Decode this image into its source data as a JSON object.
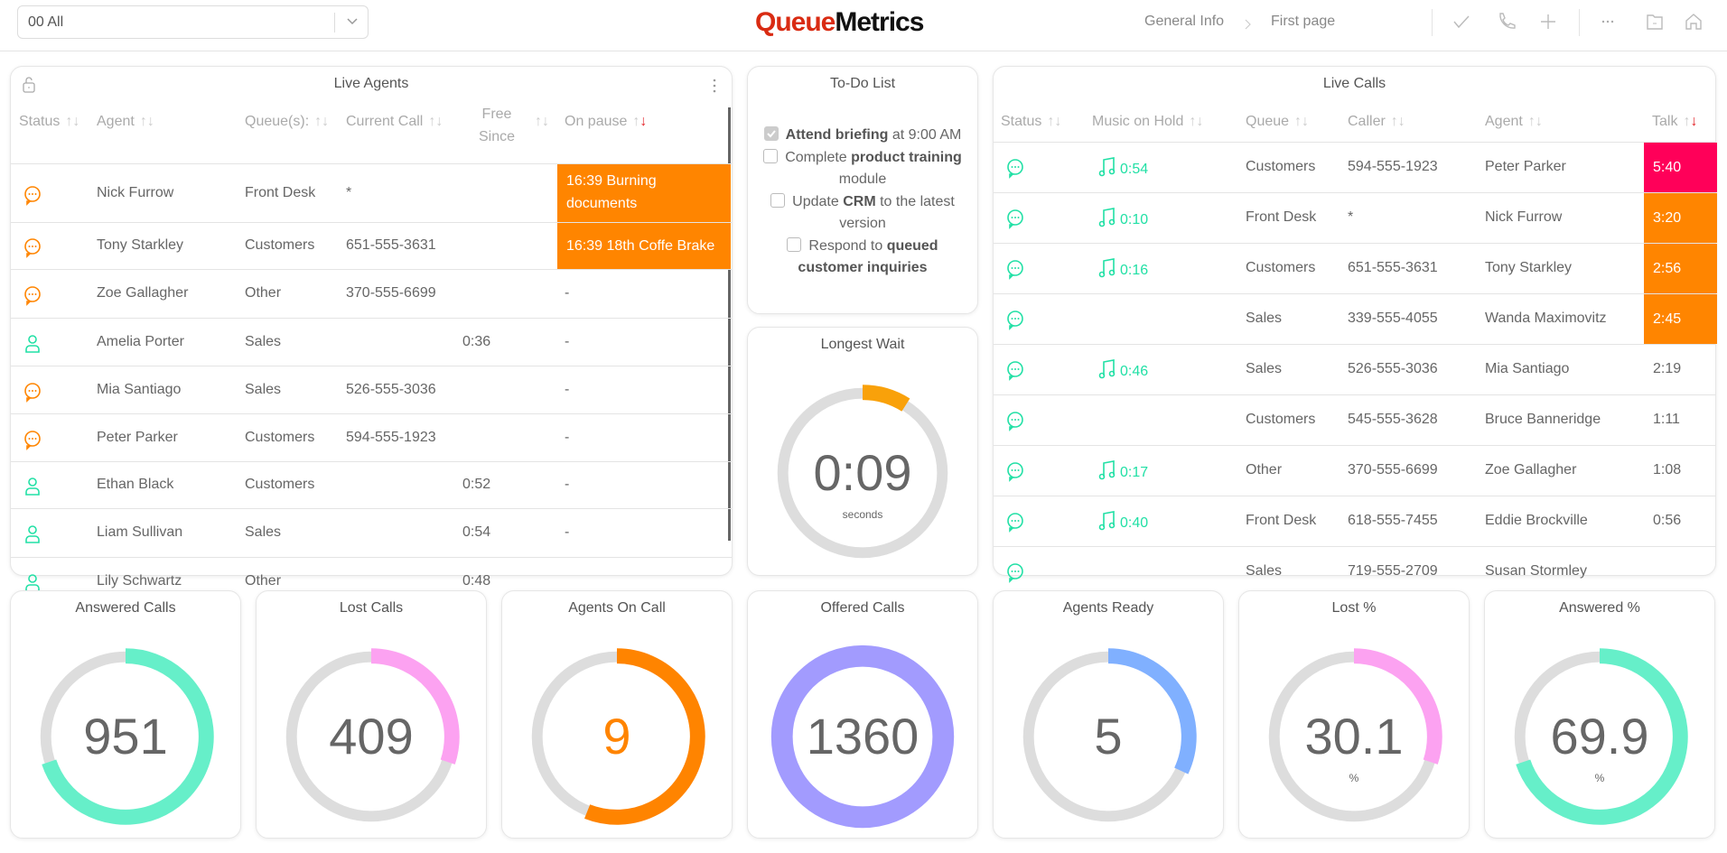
{
  "header": {
    "queue_select": "00 All",
    "logo_part1": "Queue",
    "logo_part2": "Metrics",
    "breadcrumb": [
      "General Info",
      "First page"
    ],
    "icons": [
      "check-icon",
      "phone-icon",
      "plus-icon",
      "more-icon",
      "folder-icon",
      "home-icon"
    ]
  },
  "colors": {
    "pause": "#ff8500",
    "talk_long": "#ff0059",
    "talk_warn": "#ff8500",
    "green": "#21e0a5",
    "orange": "#ff8500"
  },
  "live_agents": {
    "title": "Live Agents",
    "columns": [
      "Status",
      "Agent",
      "Queue(s):",
      "Current Call",
      "Free Since",
      "On pause"
    ],
    "rows": [
      {
        "status": "on-call",
        "agent": "Nick Furrow",
        "queue": "Front Desk",
        "call": "*",
        "free": "",
        "pause": "16:39 Burning documents",
        "paused": true
      },
      {
        "status": "on-call",
        "agent": "Tony Starkley",
        "queue": "Customers",
        "call": "651-555-3631",
        "free": "",
        "pause": "16:39 18th Coffe Brake",
        "paused": true
      },
      {
        "status": "on-call",
        "agent": "Zoe Gallagher",
        "queue": "Other",
        "call": "370-555-6699",
        "free": "",
        "pause": "-"
      },
      {
        "status": "ready",
        "agent": "Amelia Porter",
        "queue": "Sales",
        "call": "",
        "free": "0:36",
        "pause": "-"
      },
      {
        "status": "on-call",
        "agent": "Mia Santiago",
        "queue": "Sales",
        "call": "526-555-3036",
        "free": "",
        "pause": "-"
      },
      {
        "status": "on-call",
        "agent": "Peter Parker",
        "queue": "Customers",
        "call": "594-555-1923",
        "free": "",
        "pause": "-"
      },
      {
        "status": "ready",
        "agent": "Ethan Black",
        "queue": "Customers",
        "call": "",
        "free": "0:52",
        "pause": "-"
      },
      {
        "status": "ready",
        "agent": "Liam Sullivan",
        "queue": "Sales",
        "call": "",
        "free": "0:54",
        "pause": "-"
      },
      {
        "status": "ready",
        "agent": "Lily Schwartz",
        "queue": "Other",
        "call": "",
        "free": "0:48",
        "pause": ""
      }
    ]
  },
  "todo": {
    "title": "To-Do List",
    "items": [
      {
        "checked": true,
        "parts": [
          [
            "b",
            "Attend briefing"
          ],
          [
            "t",
            " at 9:00 AM"
          ]
        ]
      },
      {
        "checked": false,
        "parts": [
          [
            "t",
            "Complete "
          ],
          [
            "b",
            "product training"
          ],
          [
            "t",
            " module"
          ]
        ]
      },
      {
        "checked": false,
        "parts": [
          [
            "t",
            "Update "
          ],
          [
            "b",
            "CRM"
          ],
          [
            "t",
            " to the latest version"
          ]
        ]
      },
      {
        "checked": false,
        "parts": [
          [
            "t",
            "Respond to "
          ],
          [
            "b",
            "queued customer inquiries"
          ]
        ]
      }
    ]
  },
  "live_calls": {
    "title": "Live Calls",
    "columns": [
      "Status",
      "Music on Hold",
      "Queue",
      "Caller",
      "Agent",
      "Talk"
    ],
    "rows": [
      {
        "moh": "0:54",
        "queue": "Customers",
        "caller": "594-555-1923",
        "agent": "Peter Parker",
        "talk": "5:40",
        "level": "long"
      },
      {
        "moh": "0:10",
        "queue": "Front Desk",
        "caller": "*",
        "agent": "Nick Furrow",
        "talk": "3:20",
        "level": "warn"
      },
      {
        "moh": "0:16",
        "queue": "Customers",
        "caller": "651-555-3631",
        "agent": "Tony Starkley",
        "talk": "2:56",
        "level": "warn"
      },
      {
        "moh": "",
        "queue": "Sales",
        "caller": "339-555-4055",
        "agent": "Wanda Maximovitz",
        "talk": "2:45",
        "level": "warn"
      },
      {
        "moh": "0:46",
        "queue": "Sales",
        "caller": "526-555-3036",
        "agent": "Mia Santiago",
        "talk": "2:19",
        "level": ""
      },
      {
        "moh": "",
        "queue": "Customers",
        "caller": "545-555-3628",
        "agent": "Bruce Banneridge",
        "talk": "1:11",
        "level": ""
      },
      {
        "moh": "0:17",
        "queue": "Other",
        "caller": "370-555-6699",
        "agent": "Zoe Gallagher",
        "talk": "1:08",
        "level": ""
      },
      {
        "moh": "0:40",
        "queue": "Front Desk",
        "caller": "618-555-7455",
        "agent": "Eddie Brockville",
        "talk": "0:56",
        "level": ""
      },
      {
        "moh": "",
        "queue": "Sales",
        "caller": "719-555-2709",
        "agent": "Susan Stormley",
        "talk": "",
        "level": ""
      }
    ]
  },
  "longest_wait": {
    "title": "Longest Wait",
    "value": "0:09",
    "unit": "seconds",
    "fill": 0.09,
    "color": "#f9a10a"
  },
  "kpis": [
    {
      "title": "Answered Calls",
      "value": "951",
      "unit": "",
      "fill": 0.699,
      "color": "#66efc9",
      "value_color": "#666666"
    },
    {
      "title": "Lost Calls",
      "value": "409",
      "unit": "",
      "fill": 0.301,
      "color": "#fca2f1",
      "value_color": "#666666"
    },
    {
      "title": "Agents On Call",
      "value": "9",
      "unit": "",
      "fill": 0.56,
      "color": "#ff8400",
      "value_color": "#ff8400"
    },
    {
      "title": "Offered Calls",
      "value": "1360",
      "unit": "",
      "fill": 1.0,
      "color": "#a29bfe",
      "value_color": "#666666"
    },
    {
      "title": "Agents Ready",
      "value": "5",
      "unit": "",
      "fill": 0.32,
      "color": "#80b0ff",
      "value_color": "#666666"
    },
    {
      "title": "Lost %",
      "value": "30.1",
      "unit": "%",
      "fill": 0.301,
      "color": "#fca2f1",
      "value_color": "#666666"
    },
    {
      "title": "Answered %",
      "value": "69.9",
      "unit": "%",
      "fill": 0.699,
      "color": "#66efc9",
      "value_color": "#666666"
    }
  ]
}
